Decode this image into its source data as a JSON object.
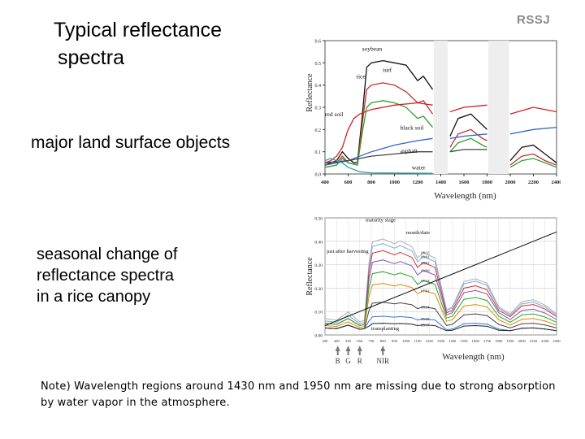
{
  "header": {
    "title_line1": "Typical reflectance",
    "title_line2": "spectra",
    "brand": "RSSJ"
  },
  "captions": {
    "chart1": "major land surface objects",
    "chart2_lines": [
      "seasonal change of",
      "reflectance spectra",
      "in a rice canopy"
    ]
  },
  "note": "Note) Wavelength regions around 1430 nm and 1950 nm are missing due to strong absorption by water vapor in the atmosphere.",
  "chart_data": [
    {
      "type": "line",
      "xlabel": "Wavelength (nm)",
      "ylabel": "Reflectance",
      "xlim": [
        400,
        2400
      ],
      "ylim": [
        0,
        0.6
      ],
      "xticks": [
        "400",
        "600",
        "800",
        "1000",
        "1200",
        "1400",
        "1600",
        "1800",
        "2000",
        "2200",
        "2400"
      ],
      "yticks": [
        "0.0",
        "0.1",
        "0.2",
        "0.3",
        "0.4",
        "0.5",
        "0.6"
      ],
      "series": [
        {
          "name": "soybean",
          "color": "#111111",
          "segments": [
            [
              [
                400,
                0.04
              ],
              [
                450,
                0.05
              ],
              [
                500,
                0.06
              ],
              [
                550,
                0.1
              ],
              [
                600,
                0.07
              ],
              [
                650,
                0.05
              ],
              [
                680,
                0.05
              ],
              [
                720,
                0.25
              ],
              [
                760,
                0.48
              ],
              [
                800,
                0.5
              ],
              [
                900,
                0.51
              ],
              [
                1000,
                0.5
              ],
              [
                1100,
                0.49
              ],
              [
                1200,
                0.42
              ],
              [
                1250,
                0.44
              ],
              [
                1330,
                0.38
              ]
            ],
            [
              [
                1480,
                0.17
              ],
              [
                1550,
                0.25
              ],
              [
                1660,
                0.27
              ],
              [
                1760,
                0.22
              ],
              [
                1800,
                0.2
              ]
            ],
            [
              [
                2000,
                0.06
              ],
              [
                2100,
                0.12
              ],
              [
                2200,
                0.13
              ],
              [
                2300,
                0.09
              ],
              [
                2400,
                0.05
              ]
            ]
          ]
        },
        {
          "name": "turf",
          "color": "#c23030",
          "segments": [
            [
              [
                400,
                0.04
              ],
              [
                500,
                0.05
              ],
              [
                550,
                0.08
              ],
              [
                600,
                0.05
              ],
              [
                680,
                0.04
              ],
              [
                720,
                0.22
              ],
              [
                760,
                0.38
              ],
              [
                800,
                0.4
              ],
              [
                900,
                0.41
              ],
              [
                1000,
                0.4
              ],
              [
                1100,
                0.37
              ],
              [
                1200,
                0.32
              ],
              [
                1250,
                0.33
              ],
              [
                1330,
                0.27
              ]
            ],
            [
              [
                1480,
                0.12
              ],
              [
                1550,
                0.18
              ],
              [
                1660,
                0.2
              ],
              [
                1760,
                0.16
              ],
              [
                1800,
                0.15
              ]
            ],
            [
              [
                2000,
                0.04
              ],
              [
                2100,
                0.08
              ],
              [
                2200,
                0.09
              ],
              [
                2300,
                0.06
              ],
              [
                2400,
                0.04
              ]
            ]
          ]
        },
        {
          "name": "rice",
          "color": "#2f9e2f",
          "segments": [
            [
              [
                400,
                0.03
              ],
              [
                500,
                0.04
              ],
              [
                550,
                0.07
              ],
              [
                600,
                0.05
              ],
              [
                680,
                0.04
              ],
              [
                720,
                0.18
              ],
              [
                760,
                0.3
              ],
              [
                800,
                0.32
              ],
              [
                900,
                0.33
              ],
              [
                1000,
                0.32
              ],
              [
                1100,
                0.3
              ],
              [
                1200,
                0.25
              ],
              [
                1250,
                0.26
              ],
              [
                1330,
                0.21
              ]
            ],
            [
              [
                1480,
                0.1
              ],
              [
                1550,
                0.14
              ],
              [
                1660,
                0.16
              ],
              [
                1760,
                0.13
              ],
              [
                1800,
                0.12
              ]
            ],
            [
              [
                2000,
                0.03
              ],
              [
                2100,
                0.06
              ],
              [
                2200,
                0.07
              ],
              [
                2300,
                0.05
              ],
              [
                2400,
                0.03
              ]
            ]
          ]
        },
        {
          "name": "red soil",
          "color": "#d42020",
          "segments": [
            [
              [
                400,
                0.05
              ],
              [
                450,
                0.06
              ],
              [
                500,
                0.08
              ],
              [
                550,
                0.12
              ],
              [
                600,
                0.2
              ],
              [
                650,
                0.25
              ],
              [
                700,
                0.27
              ],
              [
                800,
                0.29
              ],
              [
                1000,
                0.31
              ],
              [
                1200,
                0.32
              ],
              [
                1330,
                0.31
              ]
            ],
            [
              [
                1480,
                0.28
              ],
              [
                1600,
                0.3
              ],
              [
                1800,
                0.31
              ]
            ],
            [
              [
                2000,
                0.27
              ],
              [
                2200,
                0.3
              ],
              [
                2400,
                0.28
              ]
            ]
          ]
        },
        {
          "name": "black soil",
          "color": "#3366cc",
          "segments": [
            [
              [
                400,
                0.04
              ],
              [
                600,
                0.06
              ],
              [
                800,
                0.1
              ],
              [
                1000,
                0.13
              ],
              [
                1200,
                0.15
              ],
              [
                1330,
                0.16
              ]
            ],
            [
              [
                1480,
                0.16
              ],
              [
                1600,
                0.17
              ],
              [
                1800,
                0.18
              ]
            ],
            [
              [
                2000,
                0.18
              ],
              [
                2200,
                0.2
              ],
              [
                2400,
                0.21
              ]
            ]
          ]
        },
        {
          "name": "asphalt",
          "color": "#444444",
          "segments": [
            [
              [
                400,
                0.05
              ],
              [
                600,
                0.06
              ],
              [
                800,
                0.08
              ],
              [
                1000,
                0.09
              ],
              [
                1200,
                0.1
              ],
              [
                1330,
                0.1
              ]
            ],
            [
              [
                1480,
                0.1
              ],
              [
                1600,
                0.11
              ],
              [
                1800,
                0.11
              ]
            ]
          ]
        },
        {
          "name": "water",
          "color": "#2aa5a5",
          "segments": [
            [
              [
                400,
                0.06
              ],
              [
                450,
                0.07
              ],
              [
                500,
                0.06
              ],
              [
                550,
                0.05
              ],
              [
                600,
                0.03
              ],
              [
                700,
                0.01
              ],
              [
                800,
                0.005
              ],
              [
                1330,
                0.003
              ]
            ]
          ]
        }
      ],
      "annotations": [
        "soybean",
        "turf",
        "rice",
        "red soil",
        "black soil",
        "asphalt",
        "water"
      ]
    },
    {
      "type": "line",
      "xlabel": "Wavelength (nm)",
      "ylabel": "Reflectance",
      "xlim": [
        350,
        2350
      ],
      "ylim": [
        0,
        0.5
      ],
      "xticks": [
        "350",
        "450",
        "550",
        "650",
        "750",
        "850",
        "950",
        "1050",
        "1150",
        "1250",
        "1350",
        "1450",
        "1550",
        "1650",
        "1750",
        "1850",
        "1950",
        "2050",
        "2150",
        "2250",
        "2350"
      ],
      "yticks": [
        "0.00",
        "0.10",
        "0.20",
        "0.30",
        "0.40",
        "0.50"
      ],
      "band_markers": [
        "B",
        "G",
        "R",
        "NIR"
      ],
      "series": [
        {
          "name": "08/15",
          "color": "#b0b0b0",
          "nir": 0.41,
          "swir": 0.24,
          "swir2": 0.15,
          "vis": 0.07
        },
        {
          "name": "09/01",
          "color": "#7aa8d8",
          "nir": 0.39,
          "swir": 0.23,
          "swir2": 0.14,
          "vis": 0.06
        },
        {
          "name": "08/01",
          "color": "#cc3333",
          "nir": 0.36,
          "swir": 0.21,
          "swir2": 0.13,
          "vis": 0.05
        },
        {
          "name": "09/09",
          "color": "#8855aa",
          "nir": 0.32,
          "swir": 0.19,
          "swir2": 0.11,
          "vis": 0.05
        },
        {
          "name": "07/14",
          "color": "#22aa22",
          "nir": 0.27,
          "swir": 0.16,
          "swir2": 0.09,
          "vis": 0.05
        },
        {
          "name": "07/01",
          "color": "#dd8800",
          "nir": 0.22,
          "swir": 0.13,
          "swir2": 0.07,
          "vis": 0.04
        },
        {
          "name": "06/14",
          "color": "#444444",
          "nir": 0.14,
          "swir": 0.09,
          "swir2": 0.05,
          "vis": 0.03
        },
        {
          "name": "05/28",
          "color": "#3377cc",
          "nir": 0.08,
          "swir": 0.05,
          "swir2": 0.03,
          "vis": 0.03
        },
        {
          "name": "05/17",
          "color": "#222222",
          "nir": 0.05,
          "swir": 0.04,
          "swir2": 0.03,
          "vis": 0.03
        },
        {
          "name": "09/23",
          "color": "#111111",
          "linear_from": 0.04,
          "linear_to": 0.44
        }
      ],
      "annotations": [
        "maturity stage",
        "month/date",
        "just after harvesting",
        "transplanting"
      ]
    }
  ]
}
